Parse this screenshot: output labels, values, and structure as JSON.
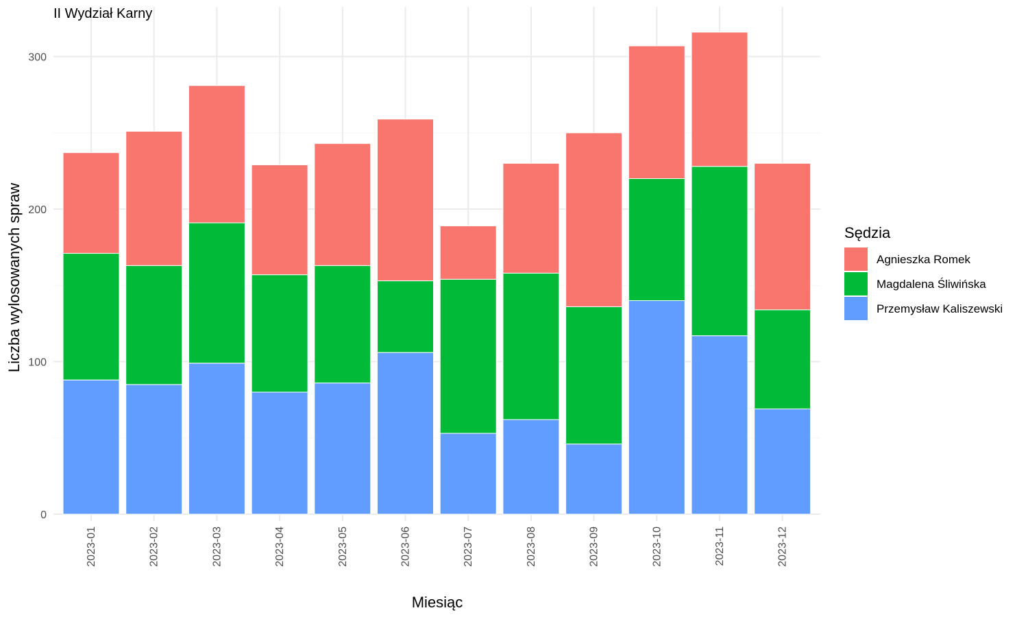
{
  "chart_data": {
    "type": "bar",
    "stacked": true,
    "title": "II Wydział Karny",
    "xlabel": "Miesiąc",
    "ylabel": "Liczba wylosowanych spraw",
    "ylim": [
      0,
      330
    ],
    "yticks": [
      0,
      100,
      200,
      300
    ],
    "grid": true,
    "legend_position": "right",
    "legend_title": "Sędzia",
    "categories": [
      "2023-01",
      "2023-02",
      "2023-03",
      "2023-04",
      "2023-05",
      "2023-06",
      "2023-07",
      "2023-08",
      "2023-09",
      "2023-10",
      "2023-11",
      "2023-12"
    ],
    "series": [
      {
        "name": "Agnieszka Romek",
        "color": "#F8766D",
        "values": [
          66,
          88,
          90,
          72,
          80,
          106,
          35,
          72,
          114,
          87,
          88,
          96
        ]
      },
      {
        "name": "Magdalena Śliwińska",
        "color": "#00BA38",
        "values": [
          83,
          78,
          92,
          77,
          77,
          47,
          101,
          96,
          90,
          80,
          111,
          65
        ]
      },
      {
        "name": "Przemysław Kaliszewski",
        "color": "#619CFF",
        "values": [
          88,
          85,
          99,
          80,
          86,
          106,
          53,
          62,
          46,
          140,
          117,
          69
        ]
      }
    ]
  }
}
